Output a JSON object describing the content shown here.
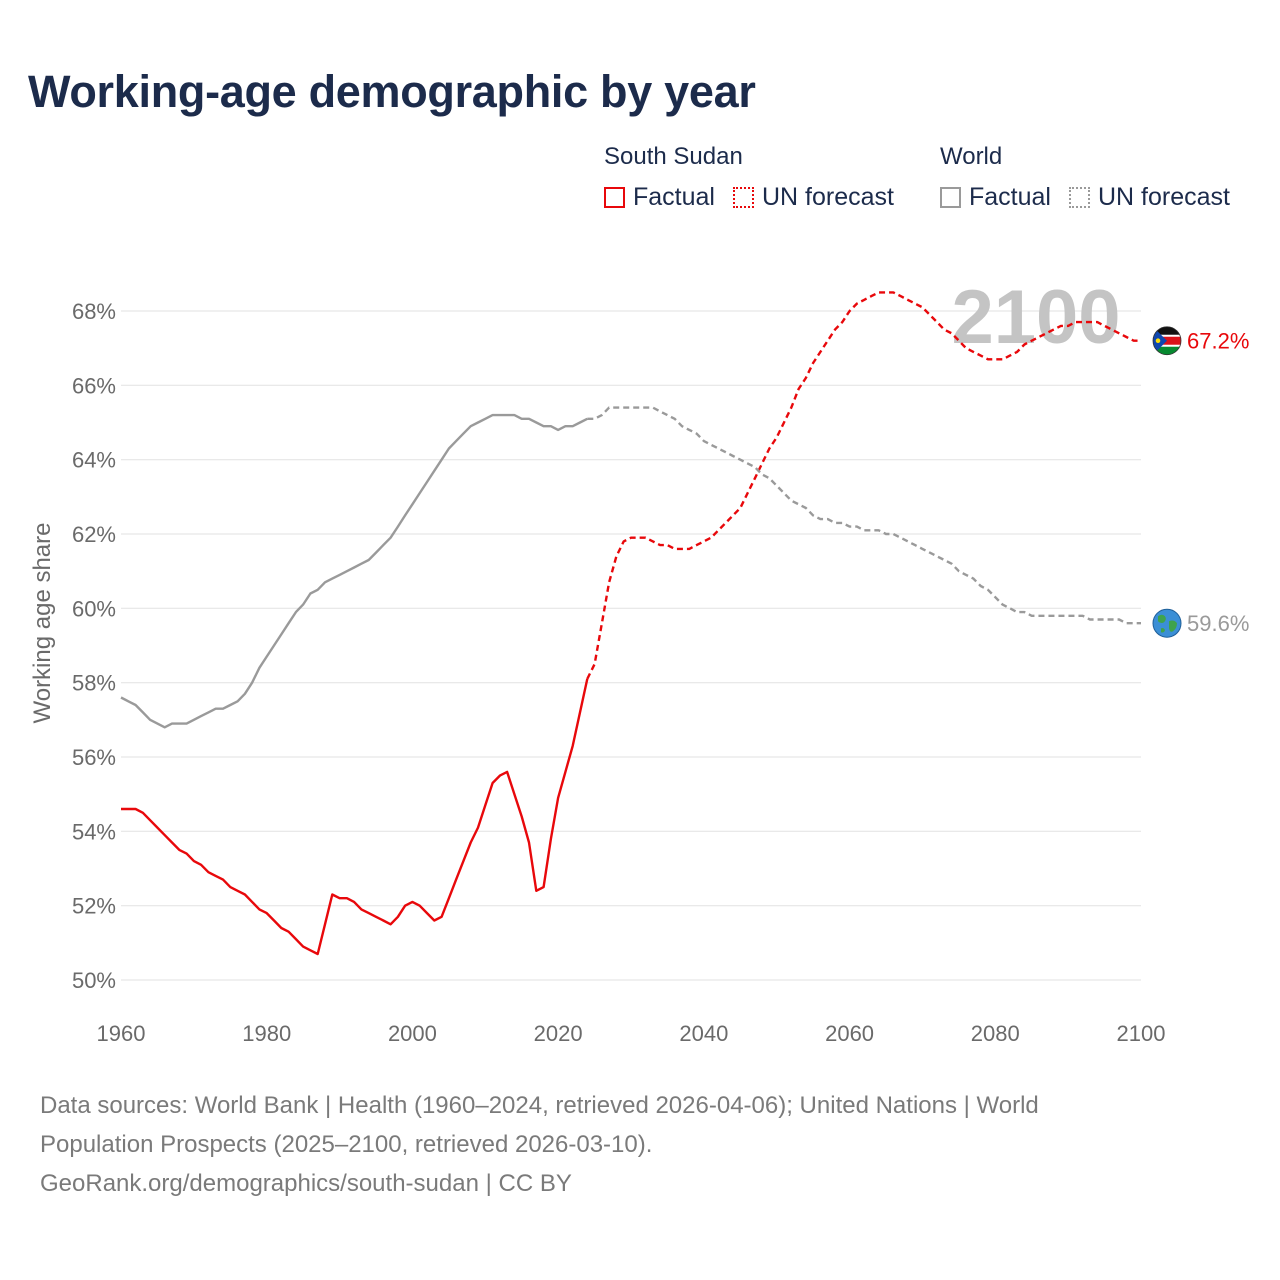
{
  "title": "Working-age demographic by year",
  "legend": {
    "south_sudan": {
      "title": "South Sudan",
      "factual": "Factual",
      "forecast": "UN forecast"
    },
    "world": {
      "title": "World",
      "factual": "Factual",
      "forecast": "UN forecast"
    }
  },
  "colors": {
    "south_sudan": "#e8080b",
    "world": "#9a9a9a",
    "title": "#1c2b4b"
  },
  "footer": {
    "line1": "Data sources: World Bank | Health (1960–2024, retrieved 2026-04-06); United Nations | World",
    "line2": "Population Prospects (2025–2100, retrieved 2026-03-10).",
    "line3": "GeoRank.org/demographics/south-sudan | CC BY"
  },
  "chart_data": {
    "type": "line",
    "title": "Working-age demographic by year",
    "xlabel": "",
    "ylabel": "Working age share",
    "xlim": [
      1960,
      2100
    ],
    "ylim": [
      50,
      68.8
    ],
    "xticks": [
      1960,
      1980,
      2000,
      2020,
      2040,
      2060,
      2080,
      2100
    ],
    "xtick_labels": [
      "1960",
      "1980",
      "2000",
      "2020",
      "2040",
      "2060",
      "2080",
      "2100"
    ],
    "yticks": [
      50,
      52,
      54,
      56,
      58,
      60,
      62,
      64,
      66,
      68
    ],
    "ytick_labels": [
      "50%",
      "52%",
      "54%",
      "56%",
      "58%",
      "60%",
      "62%",
      "64%",
      "66%",
      "68%"
    ],
    "year_watermark": "2100",
    "series": [
      {
        "name": "South Sudan",
        "segment": "Factual",
        "style": "solid",
        "color": "#e8080b",
        "x": [
          1960,
          1961,
          1962,
          1963,
          1964,
          1965,
          1966,
          1967,
          1968,
          1969,
          1970,
          1971,
          1972,
          1973,
          1974,
          1975,
          1976,
          1977,
          1978,
          1979,
          1980,
          1981,
          1982,
          1983,
          1984,
          1985,
          1986,
          1987,
          1988,
          1989,
          1990,
          1991,
          1992,
          1993,
          1994,
          1995,
          1996,
          1997,
          1998,
          1999,
          2000,
          2001,
          2002,
          2003,
          2004,
          2005,
          2006,
          2007,
          2008,
          2009,
          2010,
          2011,
          2012,
          2013,
          2014,
          2015,
          2016,
          2017,
          2018,
          2019,
          2020,
          2021,
          2022,
          2023,
          2024
        ],
        "y": [
          54.6,
          54.6,
          54.6,
          54.5,
          54.3,
          54.1,
          53.9,
          53.7,
          53.5,
          53.4,
          53.2,
          53.1,
          52.9,
          52.8,
          52.7,
          52.5,
          52.4,
          52.3,
          52.1,
          51.9,
          51.8,
          51.6,
          51.4,
          51.3,
          51.1,
          50.9,
          50.8,
          50.7,
          51.5,
          52.3,
          52.2,
          52.2,
          52.1,
          51.9,
          51.8,
          51.7,
          51.6,
          51.5,
          51.7,
          52.0,
          52.1,
          52.0,
          51.8,
          51.6,
          51.7,
          52.2,
          52.7,
          53.2,
          53.7,
          54.1,
          54.7,
          55.3,
          55.5,
          55.6,
          55.0,
          54.4,
          53.7,
          52.4,
          52.5,
          53.8,
          54.9,
          55.6,
          56.3,
          57.2,
          58.1
        ]
      },
      {
        "name": "South Sudan",
        "segment": "UN forecast",
        "style": "dashed",
        "color": "#e8080b",
        "x": [
          2024,
          2025,
          2026,
          2027,
          2028,
          2029,
          2030,
          2031,
          2032,
          2033,
          2034,
          2035,
          2036,
          2037,
          2038,
          2039,
          2040,
          2041,
          2042,
          2043,
          2044,
          2045,
          2046,
          2047,
          2048,
          2049,
          2050,
          2051,
          2052,
          2053,
          2054,
          2055,
          2056,
          2057,
          2058,
          2059,
          2060,
          2061,
          2062,
          2063,
          2064,
          2065,
          2066,
          2067,
          2068,
          2069,
          2070,
          2071,
          2072,
          2073,
          2074,
          2075,
          2076,
          2077,
          2078,
          2079,
          2080,
          2081,
          2082,
          2083,
          2084,
          2085,
          2086,
          2087,
          2088,
          2089,
          2090,
          2091,
          2092,
          2093,
          2094,
          2095,
          2096,
          2097,
          2098,
          2099,
          2100
        ],
        "y": [
          58.1,
          58.5,
          59.6,
          60.7,
          61.4,
          61.8,
          61.9,
          61.9,
          61.9,
          61.8,
          61.7,
          61.7,
          61.6,
          61.6,
          61.6,
          61.7,
          61.8,
          61.9,
          62.1,
          62.3,
          62.5,
          62.7,
          63.1,
          63.5,
          63.9,
          64.3,
          64.6,
          65.0,
          65.4,
          65.9,
          66.2,
          66.6,
          66.9,
          67.2,
          67.5,
          67.7,
          68.0,
          68.2,
          68.3,
          68.4,
          68.5,
          68.5,
          68.5,
          68.4,
          68.3,
          68.2,
          68.1,
          67.9,
          67.7,
          67.5,
          67.4,
          67.2,
          67.0,
          66.9,
          66.8,
          66.7,
          66.7,
          66.7,
          66.8,
          66.9,
          67.1,
          67.2,
          67.3,
          67.4,
          67.5,
          67.6,
          67.6,
          67.7,
          67.7,
          67.7,
          67.7,
          67.6,
          67.5,
          67.4,
          67.3,
          67.2,
          67.2
        ]
      },
      {
        "name": "World",
        "segment": "Factual",
        "style": "solid",
        "color": "#9a9a9a",
        "x": [
          1960,
          1961,
          1962,
          1963,
          1964,
          1965,
          1966,
          1967,
          1968,
          1969,
          1970,
          1971,
          1972,
          1973,
          1974,
          1975,
          1976,
          1977,
          1978,
          1979,
          1980,
          1981,
          1982,
          1983,
          1984,
          1985,
          1986,
          1987,
          1988,
          1989,
          1990,
          1991,
          1992,
          1993,
          1994,
          1995,
          1996,
          1997,
          1998,
          1999,
          2000,
          2001,
          2002,
          2003,
          2004,
          2005,
          2006,
          2007,
          2008,
          2009,
          2010,
          2011,
          2012,
          2013,
          2014,
          2015,
          2016,
          2017,
          2018,
          2019,
          2020,
          2021,
          2022,
          2023,
          2024
        ],
        "y": [
          57.6,
          57.5,
          57.4,
          57.2,
          57.0,
          56.9,
          56.8,
          56.9,
          56.9,
          56.9,
          57.0,
          57.1,
          57.2,
          57.3,
          57.3,
          57.4,
          57.5,
          57.7,
          58.0,
          58.4,
          58.7,
          59.0,
          59.3,
          59.6,
          59.9,
          60.1,
          60.4,
          60.5,
          60.7,
          60.8,
          60.9,
          61.0,
          61.1,
          61.2,
          61.3,
          61.5,
          61.7,
          61.9,
          62.2,
          62.5,
          62.8,
          63.1,
          63.4,
          63.7,
          64.0,
          64.3,
          64.5,
          64.7,
          64.9,
          65.0,
          65.1,
          65.2,
          65.2,
          65.2,
          65.2,
          65.1,
          65.1,
          65.0,
          64.9,
          64.9,
          64.8,
          64.9,
          64.9,
          65.0,
          65.1
        ]
      },
      {
        "name": "World",
        "segment": "UN forecast",
        "style": "dashed",
        "color": "#9a9a9a",
        "x": [
          2024,
          2025,
          2026,
          2027,
          2028,
          2029,
          2030,
          2031,
          2032,
          2033,
          2034,
          2035,
          2036,
          2037,
          2038,
          2039,
          2040,
          2041,
          2042,
          2043,
          2044,
          2045,
          2046,
          2047,
          2048,
          2049,
          2050,
          2051,
          2052,
          2053,
          2054,
          2055,
          2056,
          2057,
          2058,
          2059,
          2060,
          2061,
          2062,
          2063,
          2064,
          2065,
          2066,
          2067,
          2068,
          2069,
          2070,
          2071,
          2072,
          2073,
          2074,
          2075,
          2076,
          2077,
          2078,
          2079,
          2080,
          2081,
          2082,
          2083,
          2084,
          2085,
          2086,
          2087,
          2088,
          2089,
          2090,
          2091,
          2092,
          2093,
          2094,
          2095,
          2096,
          2097,
          2098,
          2099,
          2100
        ],
        "y": [
          65.1,
          65.1,
          65.2,
          65.4,
          65.4,
          65.4,
          65.4,
          65.4,
          65.4,
          65.4,
          65.3,
          65.2,
          65.1,
          64.9,
          64.8,
          64.7,
          64.5,
          64.4,
          64.3,
          64.2,
          64.1,
          64.0,
          63.9,
          63.8,
          63.6,
          63.5,
          63.3,
          63.1,
          62.9,
          62.8,
          62.7,
          62.5,
          62.4,
          62.4,
          62.3,
          62.3,
          62.2,
          62.2,
          62.1,
          62.1,
          62.1,
          62.0,
          62.0,
          61.9,
          61.8,
          61.7,
          61.6,
          61.5,
          61.4,
          61.3,
          61.2,
          61.0,
          60.9,
          60.8,
          60.6,
          60.5,
          60.3,
          60.1,
          60.0,
          59.9,
          59.9,
          59.8,
          59.8,
          59.8,
          59.8,
          59.8,
          59.8,
          59.8,
          59.8,
          59.7,
          59.7,
          59.7,
          59.7,
          59.7,
          59.6,
          59.6,
          59.6
        ]
      }
    ],
    "end_labels": [
      {
        "name": "South Sudan",
        "value": 67.2,
        "text": "67.2%",
        "icon": "south-sudan-flag-icon",
        "color": "#e8080b"
      },
      {
        "name": "World",
        "value": 59.6,
        "text": "59.6%",
        "icon": "globe-icon",
        "color": "#9a9a9a"
      }
    ]
  }
}
